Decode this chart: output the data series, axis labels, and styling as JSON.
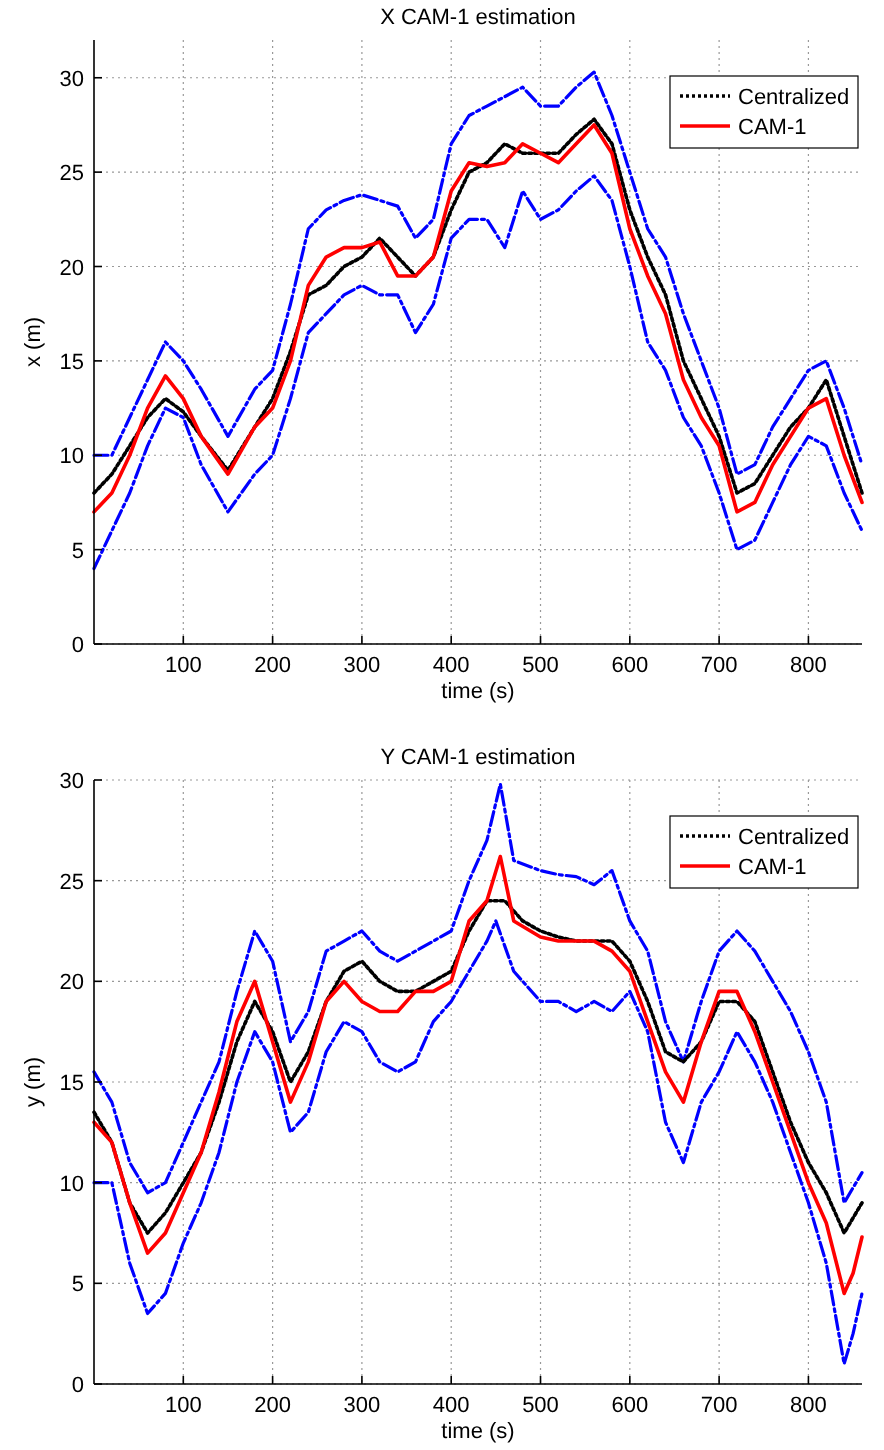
{
  "chart_data": [
    {
      "type": "line",
      "title": "X CAM-1 estimation",
      "xlabel": "time (s)",
      "ylabel": "x (m)",
      "xlim": [
        0,
        860
      ],
      "ylim": [
        0,
        32
      ],
      "xticks": [
        100,
        200,
        300,
        400,
        500,
        600,
        700,
        800
      ],
      "yticks": [
        0,
        5,
        10,
        15,
        20,
        25,
        30
      ],
      "grid": true,
      "legend": "top right",
      "series": [
        {
          "color": "#0000ff",
          "line_style": "dashed",
          "x": [
            0,
            20,
            40,
            60,
            80,
            100,
            120,
            150,
            180,
            200,
            220,
            240,
            260,
            280,
            300,
            320,
            340,
            360,
            380,
            400,
            420,
            440,
            460,
            480,
            500,
            520,
            540,
            560,
            580,
            600,
            620,
            640,
            660,
            680,
            700,
            720,
            740,
            760,
            780,
            800,
            820,
            840,
            860
          ],
          "values": [
            10,
            10,
            12,
            14,
            16,
            15,
            13.5,
            11,
            13.5,
            14.5,
            18,
            22,
            23,
            23.5,
            23.8,
            23.5,
            23.2,
            21.5,
            22.5,
            26.5,
            28,
            28.5,
            29,
            29.5,
            28.5,
            28.5,
            29.5,
            30.3,
            28,
            25,
            22,
            20.5,
            17.5,
            15,
            12.5,
            9,
            9.5,
            11.5,
            13,
            14.5,
            15,
            12.5,
            9.5
          ]
        },
        {
          "color": "#0000ff",
          "line_style": "dashed",
          "x": [
            0,
            20,
            40,
            60,
            80,
            100,
            120,
            150,
            180,
            200,
            220,
            240,
            260,
            280,
            300,
            320,
            340,
            360,
            380,
            400,
            420,
            440,
            460,
            480,
            500,
            520,
            540,
            560,
            580,
            600,
            620,
            640,
            660,
            680,
            700,
            720,
            740,
            760,
            780,
            800,
            820,
            840,
            860
          ],
          "values": [
            4,
            6,
            8,
            10.5,
            12.5,
            12,
            9.5,
            7,
            9,
            10,
            13,
            16.5,
            17.5,
            18.5,
            19,
            18.5,
            18.5,
            16.5,
            18,
            21.5,
            22.5,
            22.5,
            21,
            24,
            22.5,
            23,
            24,
            24.8,
            23.5,
            20,
            16,
            14.5,
            12,
            10.5,
            8,
            5,
            5.5,
            7.5,
            9.5,
            11,
            10.5,
            8,
            6
          ]
        },
        {
          "name": "Centralized",
          "color": "#000000",
          "line_style": "dotted",
          "x": [
            0,
            20,
            40,
            60,
            80,
            100,
            120,
            150,
            180,
            200,
            220,
            240,
            260,
            280,
            300,
            320,
            340,
            360,
            380,
            400,
            420,
            440,
            460,
            480,
            500,
            520,
            540,
            560,
            580,
            600,
            620,
            640,
            660,
            680,
            700,
            720,
            740,
            760,
            780,
            800,
            820,
            840,
            860
          ],
          "values": [
            8,
            9,
            10.5,
            12,
            13,
            12.3,
            11,
            9.2,
            11.5,
            13,
            15.5,
            18.5,
            19,
            20,
            20.5,
            21.5,
            20.5,
            19.5,
            20.5,
            23,
            25,
            25.5,
            26.5,
            26,
            26,
            26,
            27,
            27.8,
            26.5,
            23,
            20.5,
            18.5,
            15,
            13,
            11,
            8,
            8.5,
            10,
            11.5,
            12.5,
            14,
            11,
            8
          ]
        },
        {
          "name": "CAM-1",
          "color": "#ff0000",
          "line_style": "solid",
          "x": [
            0,
            20,
            40,
            60,
            80,
            100,
            120,
            150,
            180,
            200,
            220,
            240,
            260,
            280,
            300,
            320,
            340,
            360,
            380,
            400,
            420,
            440,
            460,
            480,
            500,
            520,
            540,
            560,
            580,
            600,
            620,
            640,
            660,
            680,
            700,
            720,
            740,
            760,
            780,
            800,
            820,
            840,
            860
          ],
          "values": [
            7,
            8,
            10,
            12.5,
            14.2,
            13,
            11,
            9,
            11.5,
            12.5,
            15,
            19,
            20.5,
            21,
            21,
            21.3,
            19.5,
            19.5,
            20.5,
            24,
            25.5,
            25.3,
            25.5,
            26.5,
            26,
            25.5,
            26.5,
            27.5,
            26,
            22,
            19.5,
            17.5,
            14,
            12,
            10.5,
            7,
            7.5,
            9.5,
            11,
            12.5,
            13,
            10,
            7.5
          ]
        }
      ]
    },
    {
      "type": "line",
      "title": "Y CAM-1 estimation",
      "xlabel": "time (s)",
      "ylabel": "y (m)",
      "xlim": [
        0,
        860
      ],
      "ylim": [
        0,
        30
      ],
      "xticks": [
        100,
        200,
        300,
        400,
        500,
        600,
        700,
        800
      ],
      "yticks": [
        0,
        5,
        10,
        15,
        20,
        25,
        30
      ],
      "grid": true,
      "legend": "top right",
      "series": [
        {
          "color": "#0000ff",
          "line_style": "dashed",
          "x": [
            0,
            20,
            40,
            60,
            80,
            100,
            120,
            140,
            160,
            180,
            200,
            220,
            240,
            260,
            280,
            300,
            320,
            340,
            360,
            380,
            400,
            420,
            440,
            455,
            470,
            500,
            520,
            540,
            560,
            580,
            600,
            620,
            640,
            660,
            680,
            700,
            720,
            740,
            760,
            780,
            800,
            820,
            840,
            860
          ],
          "values": [
            15.5,
            14,
            11,
            9.5,
            10,
            12,
            14,
            16,
            19.5,
            22.5,
            21,
            17,
            18.5,
            21.5,
            22,
            22.5,
            21.5,
            21,
            21.5,
            22,
            22.5,
            25,
            27,
            29.8,
            26,
            25.5,
            25.3,
            25.2,
            24.8,
            25.5,
            23,
            21.5,
            18,
            16,
            19,
            21.5,
            22.5,
            21.5,
            20,
            18.5,
            16.5,
            14,
            9,
            10.5
          ]
        },
        {
          "color": "#0000ff",
          "line_style": "dashed",
          "x": [
            0,
            20,
            40,
            60,
            80,
            100,
            120,
            140,
            160,
            180,
            200,
            220,
            240,
            260,
            280,
            300,
            320,
            340,
            360,
            380,
            400,
            420,
            440,
            450,
            470,
            500,
            520,
            540,
            560,
            580,
            600,
            620,
            640,
            660,
            680,
            700,
            720,
            740,
            760,
            780,
            800,
            820,
            840,
            850,
            860
          ],
          "values": [
            10,
            10,
            6,
            3.5,
            4.5,
            7,
            9,
            11.5,
            15,
            17.5,
            16,
            12.5,
            13.5,
            16.5,
            18,
            17.5,
            16,
            15.5,
            16,
            18,
            19,
            20.5,
            22,
            23,
            20.5,
            19,
            19,
            18.5,
            19,
            18.5,
            19.5,
            17.5,
            13,
            11,
            14,
            15.5,
            17.5,
            16,
            14,
            11.5,
            9,
            6,
            1,
            2.5,
            4.5
          ]
        },
        {
          "name": "Centralized",
          "color": "#000000",
          "line_style": "dotted",
          "x": [
            0,
            20,
            40,
            60,
            80,
            100,
            120,
            140,
            160,
            180,
            200,
            220,
            240,
            260,
            280,
            300,
            320,
            340,
            360,
            380,
            400,
            420,
            440,
            460,
            480,
            500,
            520,
            540,
            560,
            580,
            600,
            620,
            640,
            660,
            680,
            700,
            720,
            740,
            760,
            780,
            800,
            820,
            840,
            860
          ],
          "values": [
            13.5,
            12,
            9,
            7.5,
            8.5,
            10,
            11.5,
            14,
            17,
            19,
            17.5,
            15,
            16.5,
            19,
            20.5,
            21,
            20,
            19.5,
            19.5,
            20,
            20.5,
            22.5,
            24,
            24,
            23,
            22.5,
            22.2,
            22,
            22,
            22,
            21,
            19,
            16.5,
            16,
            17,
            19,
            19,
            18,
            15.5,
            13,
            11,
            9.5,
            7.5,
            9
          ]
        },
        {
          "name": "CAM-1",
          "color": "#ff0000",
          "line_style": "solid",
          "x": [
            0,
            20,
            40,
            60,
            80,
            100,
            120,
            140,
            160,
            180,
            200,
            220,
            240,
            260,
            280,
            300,
            320,
            340,
            360,
            380,
            400,
            420,
            440,
            455,
            470,
            500,
            520,
            540,
            560,
            580,
            600,
            620,
            640,
            660,
            680,
            700,
            720,
            740,
            760,
            780,
            800,
            820,
            840,
            850,
            860
          ],
          "values": [
            13,
            12,
            9,
            6.5,
            7.5,
            9.5,
            11.5,
            14.5,
            18,
            20,
            17,
            14,
            16,
            19,
            20,
            19,
            18.5,
            18.5,
            19.5,
            19.5,
            20,
            23,
            24,
            26.2,
            23,
            22.2,
            22,
            22,
            22,
            21.5,
            20.5,
            18,
            15.5,
            14,
            17,
            19.5,
            19.5,
            17.5,
            15,
            12.5,
            10,
            8,
            4.5,
            5.5,
            7.3
          ]
        }
      ]
    }
  ]
}
